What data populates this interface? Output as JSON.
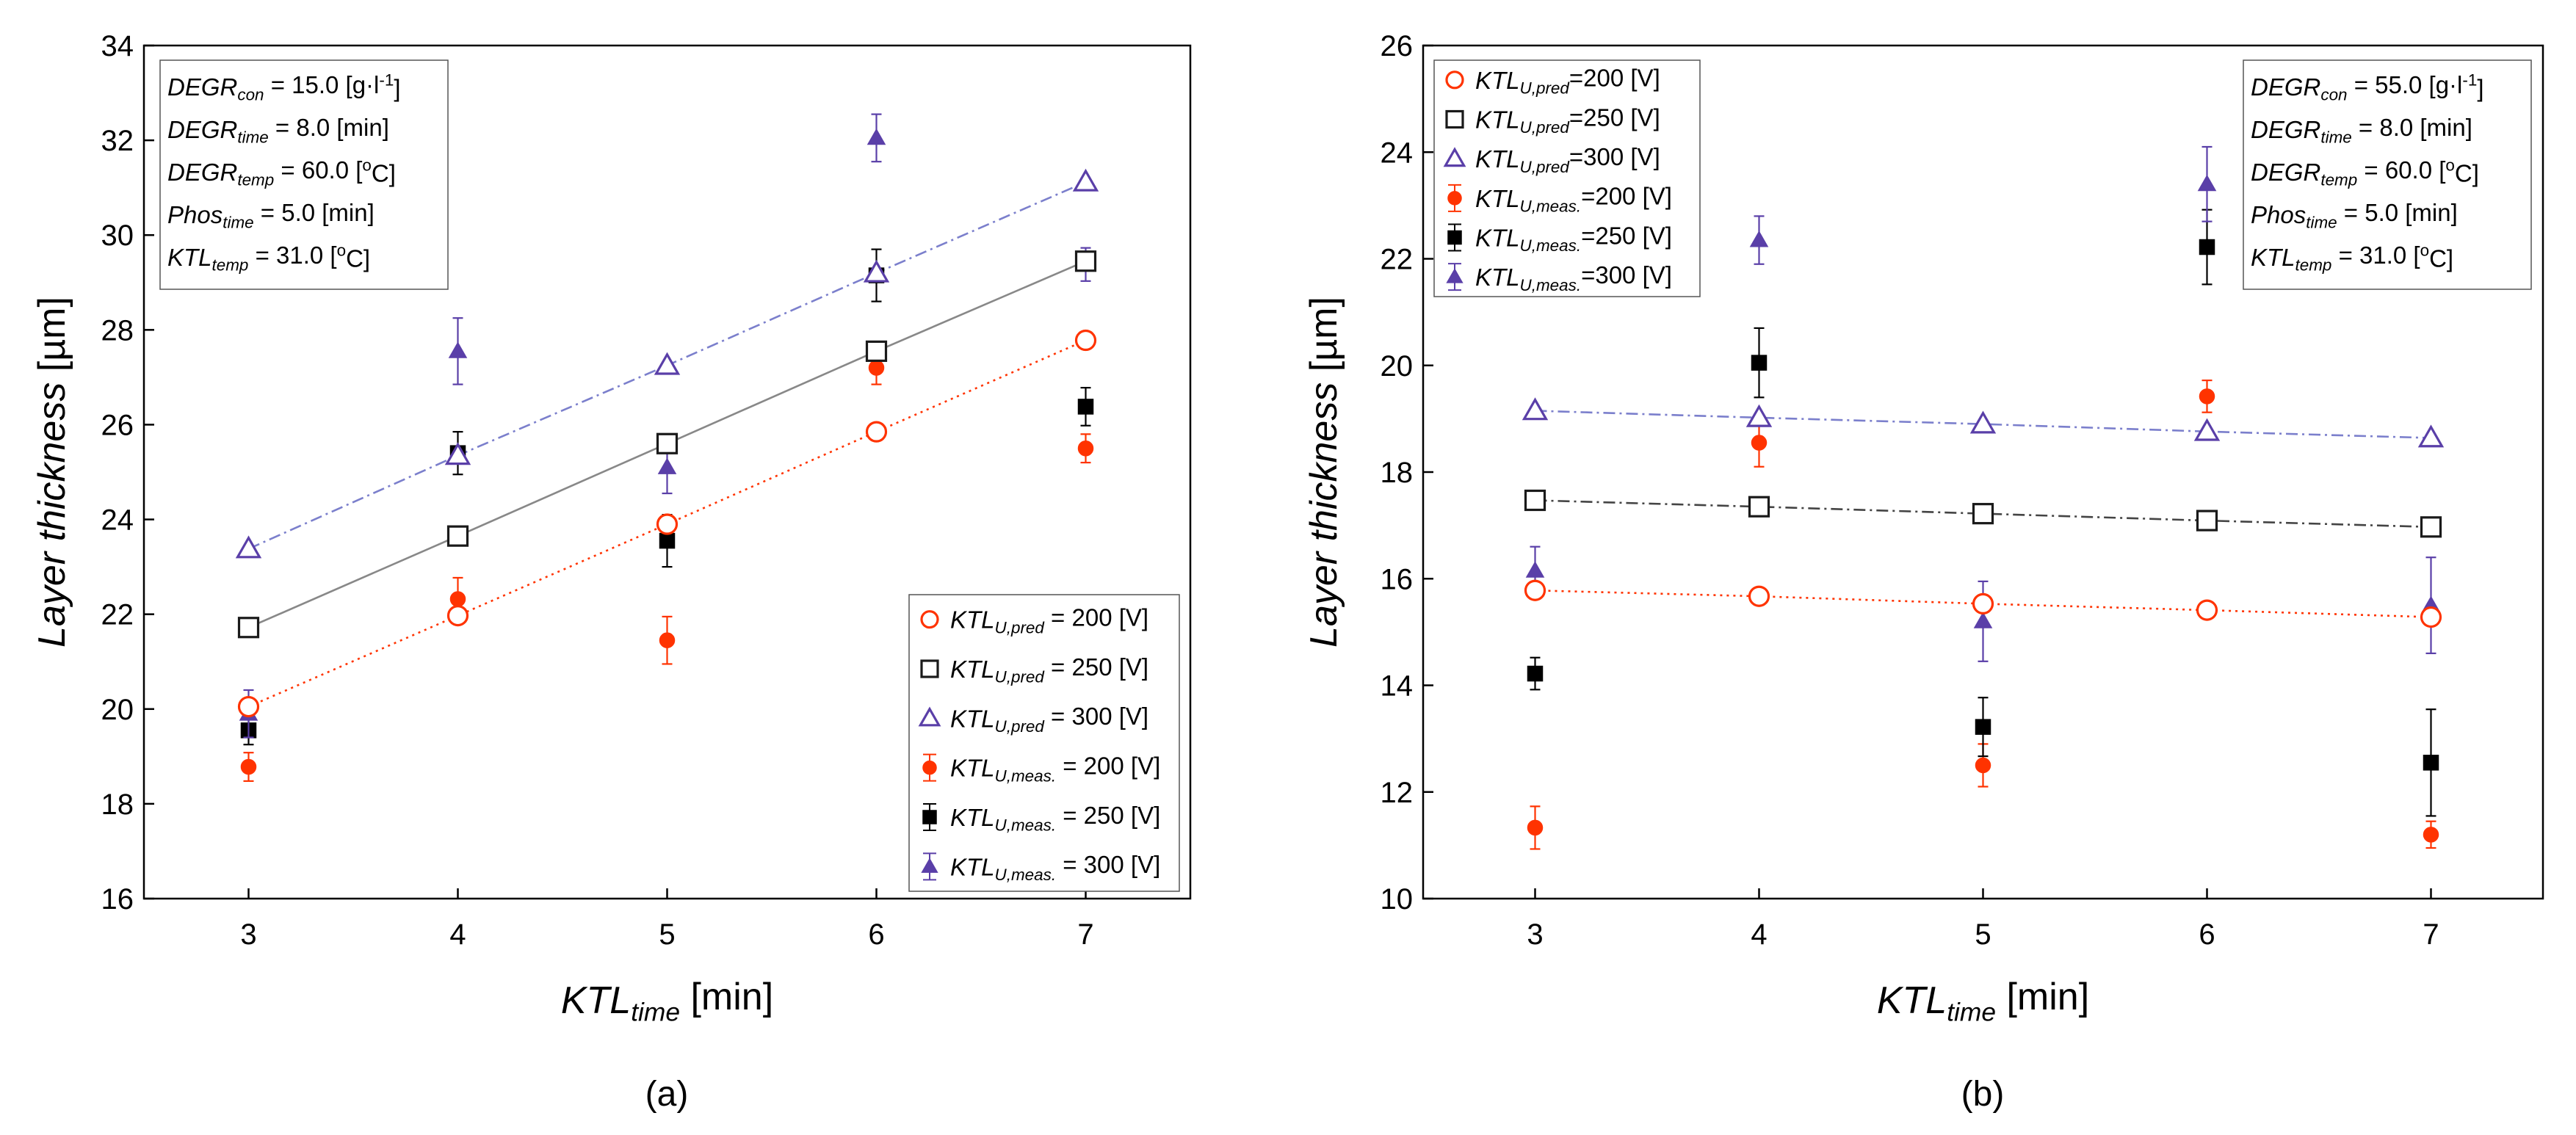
{
  "chart_data": [
    {
      "type": "scatter",
      "panel_label": "(a)",
      "xlabel": {
        "main": "KTL",
        "sub": "time",
        "unit": " [min]"
      },
      "ylabel": {
        "main": "Layer thickness",
        "unit": " [µm]"
      },
      "xlim": [
        2.5,
        7.5
      ],
      "ylim": [
        16,
        34
      ],
      "xticks": [
        3,
        4,
        5,
        6,
        7
      ],
      "yticks": [
        16,
        18,
        20,
        22,
        24,
        26,
        28,
        30,
        32,
        34
      ],
      "grid": false,
      "legend_position": "bottom-right",
      "info_position": "top-left",
      "info_lines": [
        {
          "main": "DEGR",
          "sub": "con",
          "value": " = 15.0 [g·l",
          "sup": "-1",
          "tail": "]"
        },
        {
          "main": "DEGR",
          "sub": "time",
          "value": " = 8.0 [min]"
        },
        {
          "main": "DEGR",
          "sub": "temp",
          "value": " = 60.0 [",
          "sup": "o",
          "tail": "C]"
        },
        {
          "main": "Phos",
          "sub": "time",
          "value": " = 5.0 [min]"
        },
        {
          "main": "KTL",
          "sub": "temp",
          "value": " = 31.0 [",
          "sup": "o",
          "tail": "C]"
        }
      ],
      "series": [
        {
          "name": "KTL U,pred = 200 [V]",
          "kind": "pred",
          "marker": "circle",
          "color": "#ff3300",
          "line": "dotted",
          "x": [
            3,
            4,
            5,
            6,
            7
          ],
          "values": [
            20.05,
            21.97,
            23.9,
            25.85,
            27.78
          ],
          "legend": {
            "main": "KTL",
            "sub": "U,pred",
            "value": " = 200 [V]"
          }
        },
        {
          "name": "KTL U,pred = 250 [V]",
          "kind": "pred",
          "marker": "square",
          "color": "#1a1a1a",
          "line_color": "#888888",
          "line": "solid",
          "x": [
            3,
            4,
            5,
            6,
            7
          ],
          "values": [
            21.72,
            23.65,
            25.6,
            27.55,
            29.45
          ],
          "legend": {
            "main": "KTL",
            "sub": "U,pred",
            "value": " = 250 [V]"
          }
        },
        {
          "name": "KTL U,pred = 300 [V]",
          "kind": "pred",
          "marker": "triangle",
          "color": "#5a3fa8",
          "line_color": "#7b7fcc",
          "line": "dashdot",
          "x": [
            3,
            4,
            5,
            6,
            7
          ],
          "values": [
            23.38,
            25.35,
            27.25,
            29.2,
            31.12
          ],
          "legend": {
            "main": "KTL",
            "sub": "U,pred",
            "value": " = 300 [V]"
          }
        },
        {
          "name": "KTL U,meas. = 200 [V]",
          "kind": "meas",
          "marker": "circle",
          "color": "#ff3300",
          "x": [
            3,
            4,
            5,
            6,
            7
          ],
          "values": [
            18.78,
            22.32,
            21.45,
            27.2,
            25.5
          ],
          "err": [
            0.3,
            0.45,
            0.5,
            0.35,
            0.3
          ],
          "legend": {
            "main": "KTL",
            "sub": "U,meas.",
            "value": " = 200 [V]"
          }
        },
        {
          "name": "KTL U,meas. = 250 [V]",
          "kind": "meas",
          "marker": "square",
          "color": "#000000",
          "x": [
            3,
            4,
            5,
            6,
            7
          ],
          "values": [
            19.55,
            25.4,
            23.55,
            29.15,
            26.38
          ],
          "err": [
            0.3,
            0.45,
            0.55,
            0.55,
            0.4
          ],
          "legend": {
            "main": "KTL",
            "sub": "U,meas.",
            "value": " = 250 [V]"
          }
        },
        {
          "name": "KTL U,meas. = 300 [V]",
          "kind": "meas",
          "marker": "triangle",
          "color": "#5a3fa8",
          "x": [
            3,
            4,
            5,
            6,
            7
          ],
          "values": [
            19.9,
            27.55,
            25.1,
            32.05,
            29.38
          ],
          "err": [
            0.5,
            0.7,
            0.55,
            0.5,
            0.35
          ],
          "legend": {
            "main": "KTL",
            "sub": "U,meas.",
            "value": " = 300 [V]"
          }
        }
      ]
    },
    {
      "type": "scatter",
      "panel_label": "(b)",
      "xlabel": {
        "main": "KTL",
        "sub": "time",
        "unit": " [min]"
      },
      "ylabel": {
        "main": "Layer thickness",
        "unit": " [µm]"
      },
      "xlim": [
        2.5,
        7.5
      ],
      "ylim": [
        10,
        26
      ],
      "xticks": [
        3,
        4,
        5,
        6,
        7
      ],
      "yticks": [
        10,
        12,
        14,
        16,
        18,
        20,
        22,
        24,
        26
      ],
      "grid": false,
      "legend_position": "top-left",
      "info_position": "top-right",
      "info_lines": [
        {
          "main": "DEGR",
          "sub": "con",
          "value": " = 55.0 [g·l",
          "sup": "-1",
          "tail": "]"
        },
        {
          "main": "DEGR",
          "sub": "time",
          "value": " = 8.0 [min]"
        },
        {
          "main": "DEGR",
          "sub": "temp",
          "value": " = 60.0 [",
          "sup": "o",
          "tail": "C]"
        },
        {
          "main": "Phos",
          "sub": "time",
          "value": " = 5.0 [min]"
        },
        {
          "main": "KTL",
          "sub": "temp",
          "value": " = 31.0 [",
          "sup": "o",
          "tail": "C]"
        }
      ],
      "series": [
        {
          "name": "KTL U,pred=200 [V]",
          "kind": "pred",
          "marker": "circle",
          "color": "#ff3300",
          "line": "dotted",
          "x": [
            3,
            4,
            5,
            6,
            7
          ],
          "values": [
            15.78,
            15.67,
            15.53,
            15.41,
            15.28
          ],
          "legend": {
            "main": "KTL",
            "sub": "U,pred",
            "value": "=200 [V]"
          }
        },
        {
          "name": "KTL U,pred=250 [V]",
          "kind": "pred",
          "marker": "square",
          "color": "#1a1a1a",
          "line_color": "#444444",
          "line": "dashdot",
          "x": [
            3,
            4,
            5,
            6,
            7
          ],
          "values": [
            17.47,
            17.35,
            17.22,
            17.09,
            16.97
          ],
          "legend": {
            "main": "KTL",
            "sub": "U,pred",
            "value": "=250 [V]"
          }
        },
        {
          "name": "KTL U,pred=300 [V]",
          "kind": "pred",
          "marker": "triangle",
          "color": "#5a3fa8",
          "line_color": "#7b7fcc",
          "line": "dashdot",
          "x": [
            3,
            4,
            5,
            6,
            7
          ],
          "values": [
            19.15,
            19.02,
            18.9,
            18.76,
            18.64
          ],
          "legend": {
            "main": "KTL",
            "sub": "U,pred",
            "value": "=300 [V]"
          }
        },
        {
          "name": "KTL U,meas.=200 [V]",
          "kind": "meas",
          "marker": "circle",
          "color": "#ff3300",
          "x": [
            3,
            4,
            5,
            6,
            7
          ],
          "values": [
            11.33,
            18.55,
            12.5,
            19.42,
            11.2
          ],
          "err": [
            0.4,
            0.45,
            0.4,
            0.3,
            0.25
          ],
          "legend": {
            "main": "KTL",
            "sub": "U,meas.",
            "value": "=200 [V]"
          }
        },
        {
          "name": "KTL U,meas.=250 [V]",
          "kind": "meas",
          "marker": "square",
          "color": "#000000",
          "x": [
            3,
            4,
            5,
            6,
            7
          ],
          "values": [
            14.22,
            20.05,
            13.22,
            22.22,
            12.55
          ],
          "err": [
            0.3,
            0.65,
            0.55,
            0.7,
            1.0
          ],
          "legend": {
            "main": "KTL",
            "sub": "U,meas.",
            "value": "=250 [V]"
          }
        },
        {
          "name": "KTL U,meas.=300 [V]",
          "kind": "meas",
          "marker": "triangle",
          "color": "#5a3fa8",
          "x": [
            3,
            4,
            5,
            6,
            7
          ],
          "values": [
            16.15,
            22.35,
            15.2,
            23.4,
            15.5
          ],
          "err": [
            0.45,
            0.45,
            0.75,
            0.7,
            0.9
          ],
          "legend": {
            "main": "KTL",
            "sub": "U,meas.",
            "value": "=300 [V]"
          }
        }
      ]
    }
  ]
}
